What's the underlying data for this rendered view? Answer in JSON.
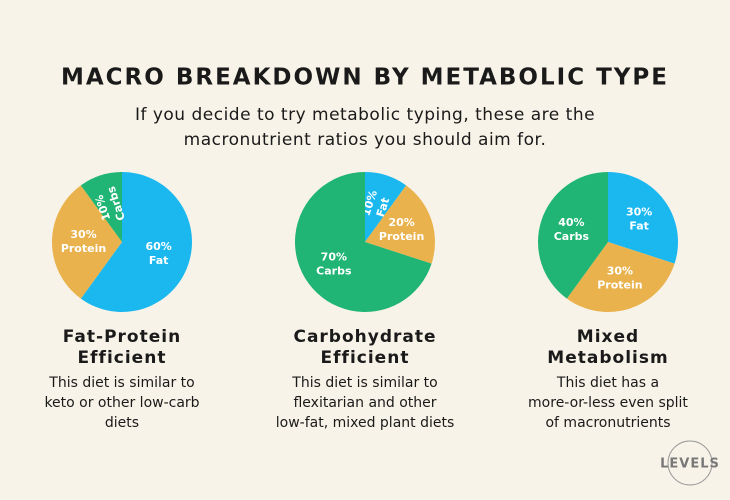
{
  "title": "MACRO BREAKDOWN BY METABOLIC TYPE",
  "subtitle": [
    "If you decide to try metabolic typing, these are the",
    "macronutrient ratios you should aim for."
  ],
  "logo": "LEVELS",
  "chart_data": [
    {
      "type": "pie",
      "title": [
        "Fat-Protein",
        "Efficient"
      ],
      "description": [
        "This diet is similar to",
        "keto or other low-carb",
        "diets"
      ],
      "categories": [
        "Fat",
        "Protein",
        "Carbs"
      ],
      "values": [
        60,
        30,
        10
      ],
      "value_labels": [
        "60%",
        "30%",
        "10%"
      ],
      "colors": [
        "#1bb8f0",
        "#e9b24c",
        "#20b574"
      ]
    },
    {
      "type": "pie",
      "title": [
        "Carbohydrate",
        "Efficient"
      ],
      "description": [
        "This diet is similar to",
        "flexitarian and other",
        "low-fat, mixed plant diets"
      ],
      "categories": [
        "Fat",
        "Protein",
        "Carbs"
      ],
      "values": [
        10,
        20,
        70
      ],
      "value_labels": [
        "10%",
        "20%",
        "70%"
      ],
      "colors": [
        "#1bb8f0",
        "#e9b24c",
        "#20b574"
      ]
    },
    {
      "type": "pie",
      "title": [
        "Mixed",
        "Metabolism"
      ],
      "description": [
        "This diet has a",
        "more-or-less even split",
        "of macronutrients"
      ],
      "categories": [
        "Fat",
        "Protein",
        "Carbs"
      ],
      "values": [
        30,
        30,
        40
      ],
      "value_labels": [
        "30%",
        "30%",
        "40%"
      ],
      "colors": [
        "#1bb8f0",
        "#e9b24c",
        "#20b574"
      ]
    }
  ]
}
